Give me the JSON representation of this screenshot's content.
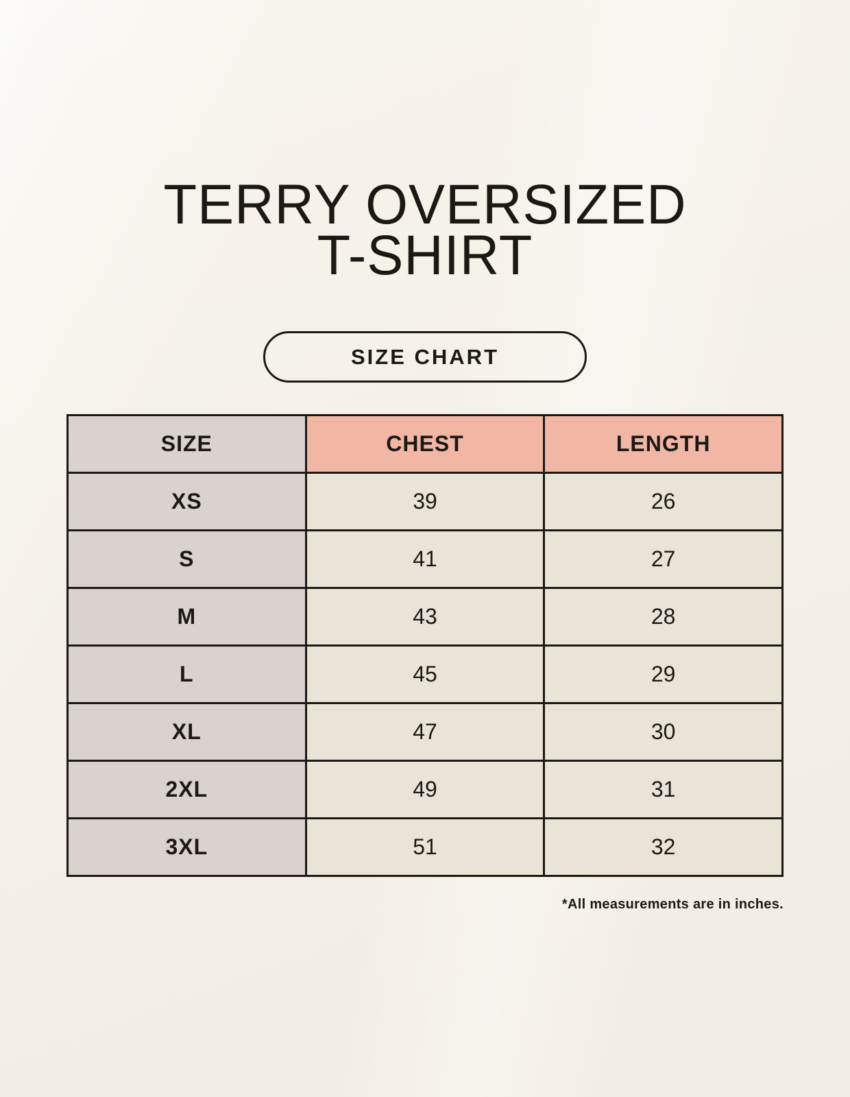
{
  "page": {
    "title_line1": "TERRY OVERSIZED",
    "title_line2": "T-SHIRT",
    "badge_label": "SIZE CHART",
    "footnote": "*All measurements are in inches."
  },
  "colors": {
    "page_background": "#f4f0e7",
    "size_column_background": "#d9d2ce",
    "accent_header_background": "#f1b6a4",
    "value_cell_background": "#eae4d7",
    "table_border": "#1b1916",
    "text": "#1b1916"
  },
  "chart_data": {
    "type": "table",
    "title": "TERRY OVERSIZED T-SHIRT",
    "subtitle": "SIZE CHART",
    "units": "inches",
    "columns": [
      "SIZE",
      "CHEST",
      "LENGTH"
    ],
    "rows": [
      [
        "XS",
        39,
        26
      ],
      [
        "S",
        41,
        27
      ],
      [
        "M",
        43,
        28
      ],
      [
        "L",
        45,
        29
      ],
      [
        "XL",
        47,
        30
      ],
      [
        "2XL",
        49,
        31
      ],
      [
        "3XL",
        51,
        32
      ]
    ],
    "footnote": "*All measurements are in inches."
  }
}
